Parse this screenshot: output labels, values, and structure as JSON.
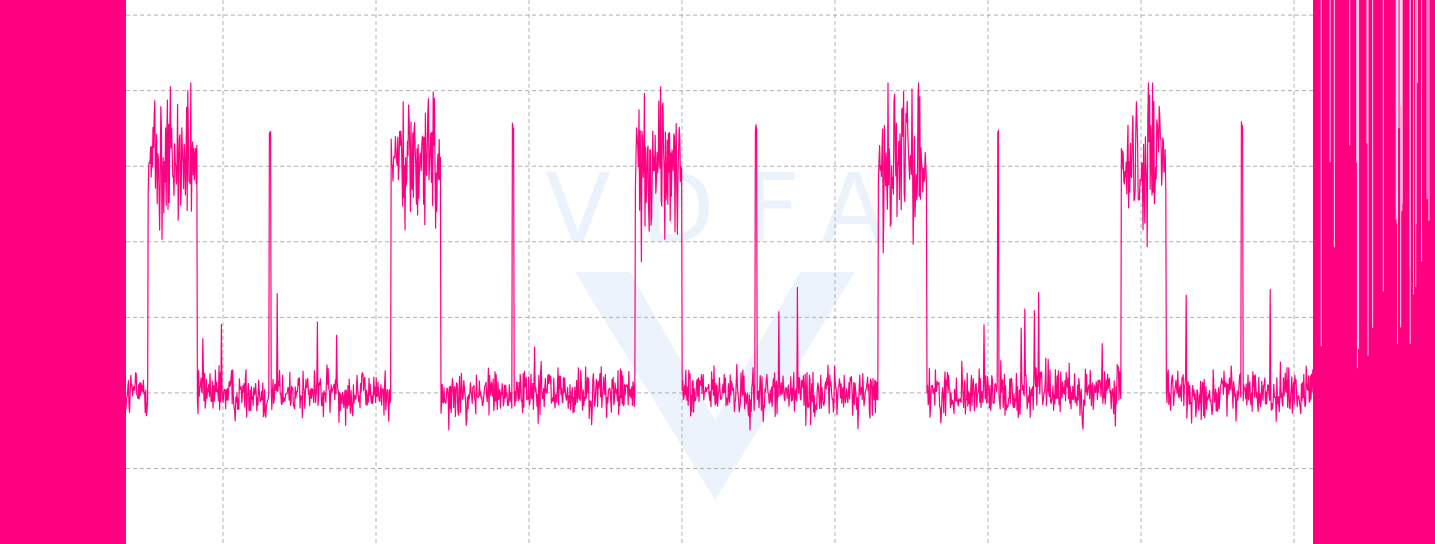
{
  "chart_data": {
    "type": "line",
    "title": "",
    "xlabel": "",
    "ylabel": "",
    "grid": true,
    "xlim": [
      0,
      1435
    ],
    "ylim": [
      0,
      7.2
    ],
    "series": [
      {
        "color": "#ff0080",
        "baseline": 2.0,
        "noise": 0.28,
        "spike_level": 3.3,
        "burst_center": 5.05,
        "burst_range": [
          3.0,
          6.1
        ],
        "bursts": [
          [
            148,
            197
          ],
          [
            391,
            441
          ],
          [
            635,
            682
          ],
          [
            878,
            927
          ],
          [
            1121,
            1166
          ]
        ],
        "spikes": [
          270,
          513,
          756,
          998,
          1242
        ],
        "saturated_regions": [
          [
            0,
            126
          ],
          [
            1313,
            1435
          ]
        ]
      }
    ]
  },
  "watermark": {
    "text": "VDFA",
    "color": "#dce9fb"
  }
}
